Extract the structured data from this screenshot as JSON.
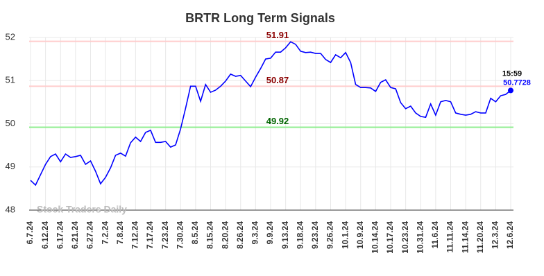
{
  "chart_data": {
    "type": "line",
    "title": "BRTR Long Term Signals",
    "watermark": "Stock Traders Daily",
    "last_time": "15:59",
    "categories": [
      "6.7.24",
      null,
      null,
      "6.12.24",
      null,
      null,
      "6.17.24",
      null,
      null,
      "6.21.24",
      null,
      null,
      "6.27.24",
      null,
      null,
      "7.2.24",
      null,
      null,
      "7.8.24",
      null,
      null,
      "7.12.24",
      null,
      null,
      "7.17.24",
      null,
      null,
      "7.23.24",
      null,
      null,
      "7.30.24",
      null,
      null,
      "8.5.24",
      null,
      null,
      "8.15.24",
      null,
      null,
      "8.20.24",
      null,
      null,
      "8.26.24",
      null,
      null,
      "9.3.24",
      null,
      null,
      "9.9.24",
      null,
      null,
      "9.13.24",
      null,
      null,
      "9.18.24",
      null,
      null,
      "9.23.24",
      null,
      null,
      "9.26.24",
      null,
      null,
      "10.1.24",
      null,
      null,
      "10.9.24",
      null,
      null,
      "10.14.24",
      null,
      null,
      "10.17.24",
      null,
      null,
      "10.23.24",
      null,
      null,
      "10.31.24",
      null,
      null,
      "11.6.24",
      null,
      null,
      "11.11.24",
      null,
      null,
      "11.14.24",
      null,
      null,
      "11.20.24",
      null,
      null,
      "12.3.24",
      null,
      null,
      "12.6.24"
    ],
    "series": [
      {
        "color": "#0000ff",
        "values": [
          48.69,
          48.58,
          48.82,
          49.06,
          49.24,
          49.3,
          49.12,
          49.3,
          49.22,
          49.24,
          49.27,
          49.06,
          49.14,
          48.9,
          48.61,
          48.76,
          48.98,
          49.27,
          49.32,
          49.25,
          49.56,
          49.69,
          49.59,
          49.8,
          49.85,
          49.57,
          49.57,
          49.59,
          49.46,
          49.51,
          49.88,
          50.36,
          50.87,
          50.87,
          50.52,
          50.91,
          50.73,
          50.78,
          50.87,
          50.99,
          51.15,
          51.1,
          51.12,
          50.99,
          50.86,
          51.08,
          51.28,
          51.5,
          51.52,
          51.66,
          51.66,
          51.76,
          51.9,
          51.84,
          51.68,
          51.65,
          51.66,
          51.63,
          51.63,
          51.49,
          51.42,
          51.6,
          51.53,
          51.65,
          51.42,
          50.91,
          50.84,
          50.84,
          50.83,
          50.75,
          50.96,
          51.02,
          50.84,
          50.81,
          50.49,
          50.35,
          50.41,
          50.25,
          50.17,
          50.15,
          50.46,
          50.2,
          50.51,
          50.54,
          50.51,
          50.25,
          50.22,
          50.2,
          50.22,
          50.28,
          50.25,
          50.25,
          50.59,
          50.51,
          50.65,
          50.68,
          50.7728
        ]
      }
    ],
    "hlines": [
      {
        "value": 51.91,
        "color": "#ffcccc",
        "label_color": "#8b0000"
      },
      {
        "value": 50.87,
        "color": "#ffcccc",
        "label_color": "#8b0000"
      },
      {
        "value": 49.92,
        "color": "#90ee90",
        "label_color": "#006400"
      }
    ],
    "ylim": [
      48,
      52
    ],
    "yticks": [
      48,
      49,
      50,
      51,
      52
    ],
    "grid": true
  }
}
